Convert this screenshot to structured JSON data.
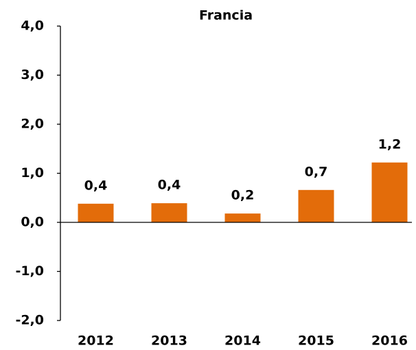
{
  "chart_data": {
    "type": "bar",
    "title": "Francia",
    "categories": [
      "2012",
      "2013",
      "2014",
      "2015",
      "2016"
    ],
    "values": [
      0.38,
      0.39,
      0.18,
      0.66,
      1.22
    ],
    "value_labels": [
      "0,4",
      "0,4",
      "0,2",
      "0,7",
      "1,2"
    ],
    "color": "#e36c0a",
    "ylim": [
      -2,
      4
    ],
    "yticks": [
      {
        "value": -2,
        "label": "-2,0"
      },
      {
        "value": -1,
        "label": "-1,0"
      },
      {
        "value": 0,
        "label": "0,0"
      },
      {
        "value": 1,
        "label": "1,0"
      },
      {
        "value": 2,
        "label": "2,0"
      },
      {
        "value": 3,
        "label": "3,0"
      },
      {
        "value": 4,
        "label": "4,0"
      }
    ]
  }
}
